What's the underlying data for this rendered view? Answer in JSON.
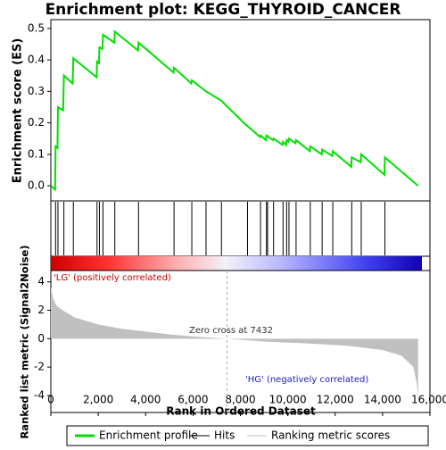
{
  "chart_data": [
    {
      "type": "line",
      "title": "Enrichment plot: KEGG_THYROID_CANCER",
      "ylabel": "Enrichment score (ES)",
      "xlim": [
        0,
        16000
      ],
      "ylim": [
        -0.048,
        0.528
      ],
      "yticks": [
        {
          "value": 0,
          "label": "0.0"
        },
        0.1,
        0.2,
        0.3,
        0.4,
        0.5
      ],
      "series": [
        {
          "name": "Enrichment profile",
          "color": "#00e000",
          "x": [
            0,
            180,
            200,
            280,
            300,
            520,
            550,
            920,
            950,
            1930,
            1950,
            2030,
            2050,
            2180,
            2200,
            2680,
            2700,
            3680,
            3700,
            5180,
            5200,
            5930,
            5950,
            6550,
            7200,
            8280,
            8300,
            8830,
            8850,
            9080,
            9100,
            9380,
            9400,
            9780,
            9800,
            9930,
            9950,
            10030,
            10050,
            10330,
            10350,
            10930,
            10950,
            11430,
            11450,
            11880,
            11900,
            12680,
            12700,
            13080,
            13100,
            14080,
            14100,
            15500
          ],
          "values": [
            0,
            -0.012,
            0.125,
            0.12,
            0.25,
            0.24,
            0.35,
            0.325,
            0.405,
            0.345,
            0.395,
            0.39,
            0.44,
            0.435,
            0.48,
            0.455,
            0.49,
            0.43,
            0.455,
            0.36,
            0.375,
            0.325,
            0.335,
            0.3,
            0.27,
            0.19,
            0.19,
            0.155,
            0.16,
            0.145,
            0.16,
            0.145,
            0.15,
            0.13,
            0.14,
            0.13,
            0.145,
            0.14,
            0.15,
            0.135,
            0.145,
            0.11,
            0.125,
            0.1,
            0.115,
            0.095,
            0.11,
            0.06,
            0.09,
            0.075,
            0.1,
            0.035,
            0.09,
            0.0
          ]
        },
        {
          "name": "Hits",
          "color": "#000000",
          "x": [
            200,
            300,
            550,
            950,
            1950,
            2050,
            2200,
            2700,
            3700,
            5200,
            5950,
            6550,
            7200,
            8300,
            8850,
            9100,
            9150,
            9400,
            9800,
            9950,
            10050,
            10350,
            10950,
            11450,
            11900,
            12700,
            13100,
            14100
          ]
        }
      ]
    },
    {
      "type": "area",
      "ylabel": "Ranked list metric (Signal2Noise)",
      "xlabel": "Rank in Ordered Dataset",
      "xlim": [
        0,
        16000
      ],
      "xticks": [
        0,
        {
          "value": 2000,
          "label": "2,000"
        },
        {
          "value": 4000,
          "label": "4,000"
        },
        {
          "value": 6000,
          "label": "6,000"
        },
        {
          "value": 8000,
          "label": "8,000"
        },
        {
          "value": 10000,
          "label": "10,000"
        },
        {
          "value": 12000,
          "label": "12,000"
        },
        {
          "value": 14000,
          "label": "14,000"
        },
        {
          "value": 16000,
          "label": "16,000"
        }
      ],
      "ylim": [
        -5.2,
        4.8
      ],
      "yticks": [
        -4,
        -2,
        0,
        2,
        4
      ],
      "zero_cross": 7432,
      "annotations": [
        "'LG' (positively correlated)",
        "Zero cross at 7432",
        "'HG' (negatively correlated)"
      ],
      "series": [
        {
          "name": "Ranking metric scores",
          "color": "#c0c0c0",
          "x": [
            0,
            100,
            250,
            500,
            1000,
            2000,
            3000,
            4000,
            5000,
            6000,
            7432,
            9000,
            11000,
            12500,
            14000,
            14800,
            15300,
            15450,
            15500
          ],
          "values": [
            3.6,
            2.8,
            2.3,
            2.0,
            1.5,
            1.0,
            0.7,
            0.5,
            0.3,
            0.15,
            0,
            -0.2,
            -0.35,
            -0.5,
            -0.8,
            -1.2,
            -2.0,
            -3.2,
            -4.5
          ]
        }
      ]
    }
  ]
}
